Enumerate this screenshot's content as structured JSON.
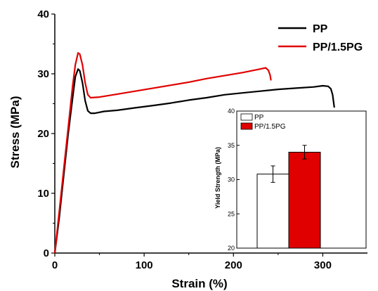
{
  "chart_data": [
    {
      "type": "line",
      "xlabel": "Strain (%)",
      "ylabel": "Stress (MPa)",
      "xlim": [
        0,
        350
      ],
      "ylim": [
        0,
        40
      ],
      "xticks": [
        0,
        100,
        200,
        300
      ],
      "yticks": [
        0,
        10,
        20,
        30,
        40
      ],
      "legend_position": "top-right",
      "series": [
        {
          "name": "PP",
          "color": "#000000",
          "points": [
            [
              0,
              0
            ],
            [
              5,
              6
            ],
            [
              10,
              13
            ],
            [
              15,
              20
            ],
            [
              20,
              26
            ],
            [
              23,
              29.5
            ],
            [
              26,
              30.8
            ],
            [
              28,
              30.5
            ],
            [
              31,
              28.5
            ],
            [
              34,
              25.5
            ],
            [
              37,
              23.8
            ],
            [
              40,
              23.4
            ],
            [
              45,
              23.4
            ],
            [
              55,
              23.7
            ],
            [
              70,
              23.9
            ],
            [
              90,
              24.3
            ],
            [
              110,
              24.7
            ],
            [
              130,
              25.1
            ],
            [
              150,
              25.6
            ],
            [
              170,
              26.0
            ],
            [
              190,
              26.5
            ],
            [
              210,
              26.8
            ],
            [
              230,
              27.1
            ],
            [
              250,
              27.4
            ],
            [
              270,
              27.6
            ],
            [
              290,
              27.8
            ],
            [
              300,
              28.0
            ],
            [
              306,
              27.9
            ],
            [
              309,
              27.5
            ],
            [
              311,
              26.5
            ],
            [
              313,
              24.2
            ]
          ]
        },
        {
          "name": "PP/1.5PG",
          "color": "#e00000",
          "points": [
            [
              0,
              0
            ],
            [
              5,
              7
            ],
            [
              10,
              14
            ],
            [
              15,
              21
            ],
            [
              20,
              28
            ],
            [
              23,
              31.5
            ],
            [
              26,
              33.5
            ],
            [
              28,
              33.3
            ],
            [
              31,
              31.5
            ],
            [
              34,
              28.5
            ],
            [
              37,
              26.5
            ],
            [
              40,
              26.0
            ],
            [
              50,
              26.1
            ],
            [
              70,
              26.6
            ],
            [
              90,
              27.1
            ],
            [
              110,
              27.6
            ],
            [
              130,
              28.1
            ],
            [
              150,
              28.6
            ],
            [
              170,
              29.2
            ],
            [
              190,
              29.7
            ],
            [
              210,
              30.2
            ],
            [
              230,
              30.8
            ],
            [
              236,
              31.0
            ],
            [
              239,
              30.6
            ],
            [
              241,
              29.8
            ],
            [
              242,
              28.9
            ]
          ]
        }
      ]
    },
    {
      "type": "bar",
      "ylabel": "Yield Strength (MPa)",
      "ylim": [
        20,
        40
      ],
      "yticks": [
        20,
        25,
        30,
        35,
        40
      ],
      "legend_position": "top-left",
      "series": [
        {
          "name": "PP",
          "value": 30.8,
          "error": 1.2,
          "color": "#ffffff"
        },
        {
          "name": "PP/1.5PG",
          "value": 34.0,
          "error": 1.0,
          "color": "#e00000"
        }
      ]
    }
  ]
}
